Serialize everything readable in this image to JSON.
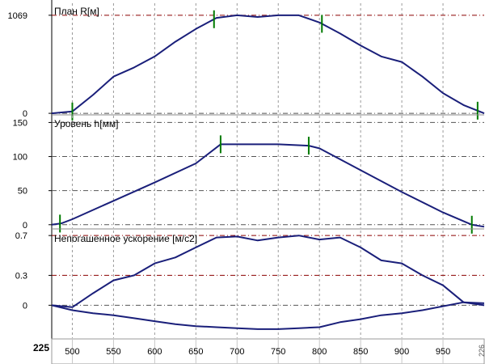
{
  "chart_data": [
    {
      "type": "line",
      "title": "План R[м]",
      "xlim": [
        475,
        1000
      ],
      "ylim": [
        -8,
        1200
      ],
      "y_ticks": [
        0,
        1069
      ],
      "x_grid": [
        500,
        550,
        600,
        650,
        700,
        750,
        800,
        850,
        900,
        950
      ],
      "grid": true,
      "series": [
        {
          "values": [
            [
              475,
              0
            ],
            [
              500,
              20
            ],
            [
              525,
              200
            ],
            [
              550,
              400
            ],
            [
              575,
              500
            ],
            [
              600,
              620
            ],
            [
              625,
              780
            ],
            [
              650,
              920
            ],
            [
              675,
              1040
            ],
            [
              700,
              1069
            ],
            [
              725,
              1050
            ],
            [
              750,
              1069
            ],
            [
              775,
              1069
            ],
            [
              800,
              990
            ],
            [
              825,
              870
            ],
            [
              850,
              740
            ],
            [
              875,
              620
            ],
            [
              900,
              560
            ],
            [
              925,
              400
            ],
            [
              950,
              220
            ],
            [
              975,
              90
            ],
            [
              1000,
              0
            ]
          ]
        }
      ],
      "markers_x": [
        500,
        672,
        803,
        992
      ]
    },
    {
      "type": "line",
      "title": "Уровень h[мм]",
      "xlim": [
        475,
        1000
      ],
      "ylim": [
        -5,
        160
      ],
      "y_ticks": [
        0,
        50,
        100,
        150
      ],
      "x_grid": [
        500,
        550,
        600,
        650,
        700,
        750,
        800,
        850,
        900,
        950
      ],
      "grid": true,
      "series": [
        {
          "values": [
            [
              475,
              0
            ],
            [
              487,
              2
            ],
            [
              500,
              8
            ],
            [
              550,
              35
            ],
            [
              600,
              62
            ],
            [
              650,
              90
            ],
            [
              680,
              118
            ],
            [
              700,
              118
            ],
            [
              750,
              118
            ],
            [
              787,
              116
            ],
            [
              800,
              112
            ],
            [
              850,
              80
            ],
            [
              900,
              48
            ],
            [
              950,
              18
            ],
            [
              985,
              0
            ],
            [
              1000,
              -3
            ]
          ]
        }
      ],
      "markers_x": [
        485,
        680,
        787,
        985
      ]
    },
    {
      "type": "line",
      "title": "Непогашенное ускорение [м/с2]",
      "xlim": [
        475,
        1000
      ],
      "ylim": [
        -0.33,
        0.75
      ],
      "y_ticks": [
        0,
        0.3,
        0.7
      ],
      "x_grid": [
        500,
        550,
        600,
        650,
        700,
        750,
        800,
        850,
        900,
        950
      ],
      "grid": true,
      "series": [
        {
          "values": [
            [
              475,
              0
            ],
            [
              500,
              -0.02
            ],
            [
              525,
              0.12
            ],
            [
              550,
              0.25
            ],
            [
              575,
              0.3
            ],
            [
              600,
              0.42
            ],
            [
              625,
              0.48
            ],
            [
              650,
              0.58
            ],
            [
              675,
              0.68
            ],
            [
              700,
              0.69
            ],
            [
              725,
              0.65
            ],
            [
              750,
              0.68
            ],
            [
              775,
              0.7
            ],
            [
              800,
              0.66
            ],
            [
              825,
              0.68
            ],
            [
              850,
              0.58
            ],
            [
              875,
              0.45
            ],
            [
              900,
              0.42
            ],
            [
              925,
              0.3
            ],
            [
              950,
              0.2
            ],
            [
              975,
              0.03
            ],
            [
              1000,
              0
            ]
          ]
        },
        {
          "values": [
            [
              475,
              0
            ],
            [
              500,
              -0.05
            ],
            [
              525,
              -0.08
            ],
            [
              550,
              -0.1
            ],
            [
              575,
              -0.13
            ],
            [
              600,
              -0.16
            ],
            [
              625,
              -0.19
            ],
            [
              650,
              -0.21
            ],
            [
              675,
              -0.22
            ],
            [
              700,
              -0.23
            ],
            [
              725,
              -0.24
            ],
            [
              750,
              -0.24
            ],
            [
              775,
              -0.23
            ],
            [
              800,
              -0.22
            ],
            [
              825,
              -0.17
            ],
            [
              850,
              -0.14
            ],
            [
              875,
              -0.1
            ],
            [
              900,
              -0.08
            ],
            [
              925,
              -0.05
            ],
            [
              950,
              -0.01
            ],
            [
              975,
              0.03
            ],
            [
              1000,
              0.02
            ]
          ]
        }
      ]
    }
  ],
  "x_axis": {
    "ticks": [
      500,
      550,
      600,
      650,
      700,
      750,
      800,
      850,
      900,
      950
    ]
  },
  "scroll": {
    "left": "225",
    "right": "226"
  },
  "colors": {
    "curve": "#1a1f7a",
    "marker": "#007a00",
    "ref_line": "#8b0000",
    "grid": "#9a9a9a"
  }
}
